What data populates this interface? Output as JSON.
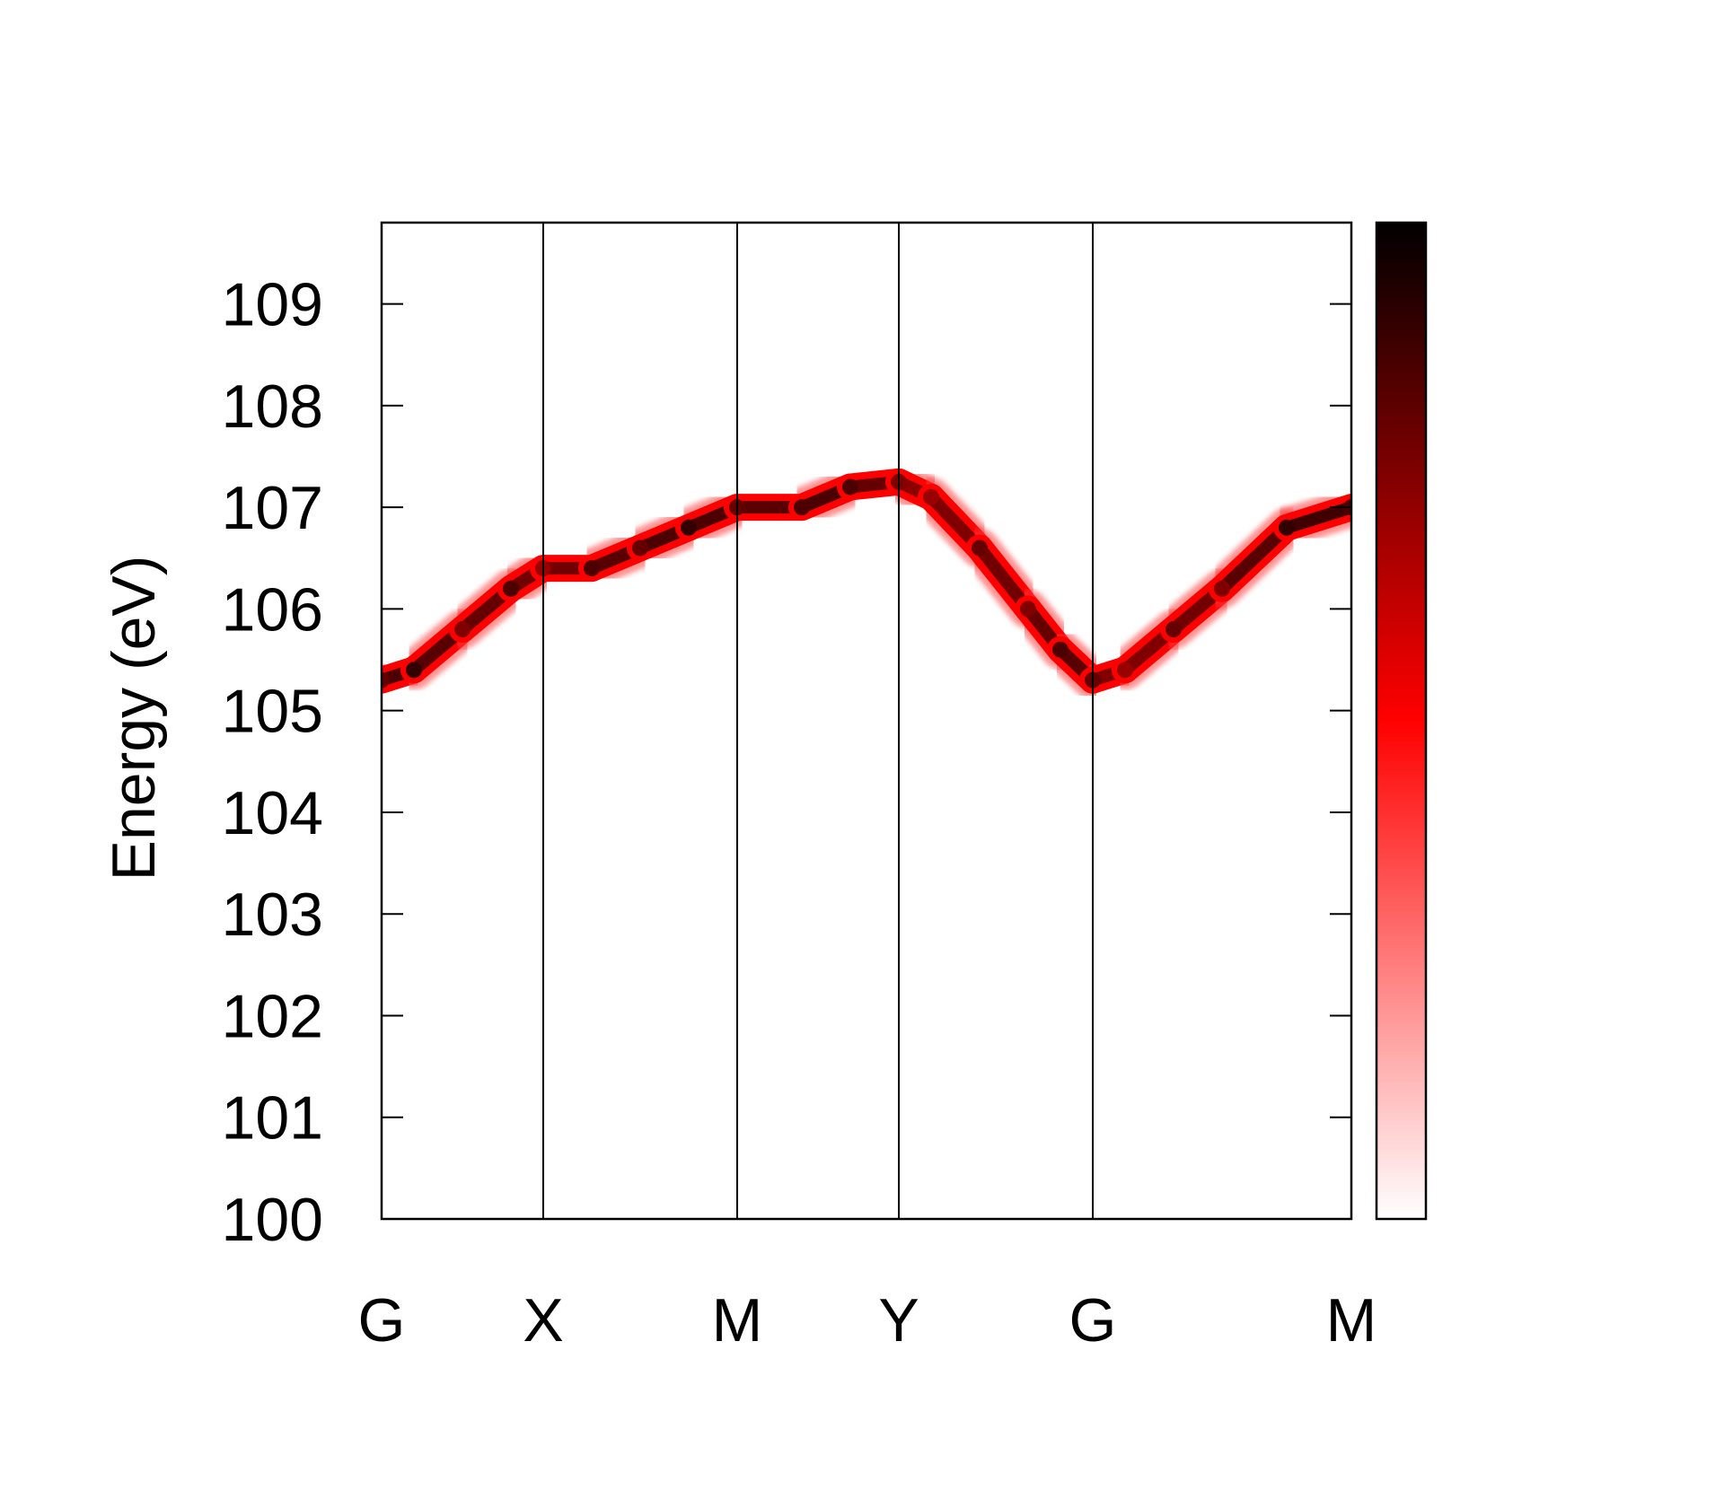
{
  "chart_data": {
    "type": "heatmap",
    "title": "",
    "xlabel": "",
    "ylabel": "Energy (eV)",
    "ylim": [
      100,
      109.8
    ],
    "yticks": [
      100,
      101,
      102,
      103,
      104,
      105,
      106,
      107,
      108,
      109
    ],
    "high_symbol_points": [
      "G",
      "X",
      "M",
      "Y",
      "G",
      "M"
    ],
    "k_path_positions": [
      0,
      1,
      2.2,
      3.2,
      4.4,
      6.0
    ],
    "grid": false,
    "vertical_lines_at_symbol_points": true,
    "band": {
      "k": [
        0,
        0.2,
        0.5,
        0.8,
        1.0,
        1.3,
        1.6,
        1.9,
        2.2,
        2.6,
        2.9,
        3.2,
        3.4,
        3.7,
        4.0,
        4.2,
        4.4,
        4.6,
        4.9,
        5.2,
        5.6,
        6.0
      ],
      "energy": [
        105.3,
        105.4,
        105.8,
        106.2,
        106.4,
        106.4,
        106.6,
        106.8,
        107.0,
        107.0,
        107.2,
        107.25,
        107.1,
        106.6,
        106.0,
        105.6,
        105.3,
        105.4,
        105.8,
        106.2,
        106.8,
        107.0
      ],
      "intensity": [
        0.8,
        0.9,
        0.75,
        0.85,
        0.7,
        0.85,
        0.8,
        0.9,
        0.8,
        0.85,
        0.85,
        0.75,
        0.7,
        0.8,
        0.75,
        0.85,
        0.8,
        0.7,
        0.8,
        0.75,
        0.9,
        0.85
      ]
    },
    "colorbar": {
      "position": "right",
      "gradient_stops": [
        "#ffffff",
        "#ff0000",
        "#000000"
      ]
    }
  }
}
